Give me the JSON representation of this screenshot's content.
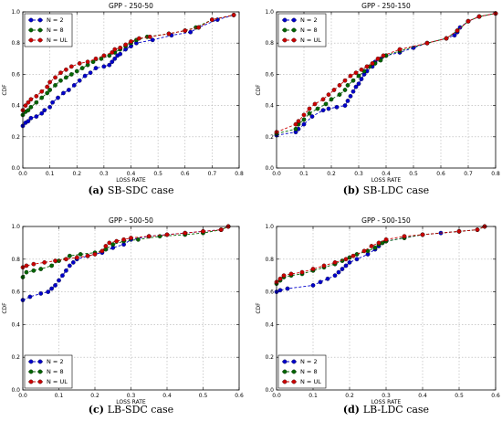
{
  "chart_data": [
    {
      "type": "line",
      "title": "GPP - 250-50",
      "xlabel": "LOSS RATE",
      "ylabel": "CDF",
      "xlim": [
        0,
        0.8
      ],
      "ylim": [
        0,
        1.0
      ],
      "xticks": [
        "0.0",
        "0.1",
        "0.2",
        "0.3",
        "0.4",
        "0.5",
        "0.6",
        "0.7",
        "0.8"
      ],
      "yticks": [
        "0.0",
        "0.2",
        "0.4",
        "0.6",
        "0.8",
        "1.0"
      ],
      "grid": true,
      "legend_position": "upper-left",
      "caption_letter": "(a)",
      "caption_text": "SB-SDC case",
      "series": [
        {
          "name": "N = 2",
          "color": "#0000cc",
          "x": [
            0,
            0.01,
            0.02,
            0.03,
            0.05,
            0.07,
            0.08,
            0.1,
            0.11,
            0.13,
            0.15,
            0.17,
            0.19,
            0.21,
            0.23,
            0.25,
            0.27,
            0.3,
            0.32,
            0.33,
            0.34,
            0.35,
            0.36,
            0.38,
            0.4,
            0.42,
            0.48,
            0.55,
            0.62,
            0.65,
            0.72,
            0.78
          ],
          "y": [
            0.27,
            0.29,
            0.3,
            0.32,
            0.33,
            0.35,
            0.37,
            0.39,
            0.42,
            0.45,
            0.48,
            0.5,
            0.53,
            0.56,
            0.59,
            0.61,
            0.64,
            0.65,
            0.66,
            0.68,
            0.7,
            0.72,
            0.73,
            0.76,
            0.78,
            0.8,
            0.82,
            0.85,
            0.87,
            0.9,
            0.95,
            0.98
          ]
        },
        {
          "name": "N = 8",
          "color": "#006600",
          "x": [
            0,
            0.01,
            0.02,
            0.03,
            0.05,
            0.07,
            0.09,
            0.1,
            0.12,
            0.14,
            0.16,
            0.18,
            0.2,
            0.22,
            0.24,
            0.26,
            0.29,
            0.32,
            0.34,
            0.36,
            0.38,
            0.4,
            0.42,
            0.46,
            0.54,
            0.6,
            0.64,
            0.7,
            0.78
          ],
          "y": [
            0.34,
            0.36,
            0.37,
            0.39,
            0.42,
            0.45,
            0.48,
            0.5,
            0.53,
            0.56,
            0.58,
            0.6,
            0.62,
            0.64,
            0.66,
            0.68,
            0.7,
            0.72,
            0.74,
            0.76,
            0.78,
            0.8,
            0.82,
            0.84,
            0.86,
            0.88,
            0.9,
            0.95,
            0.98
          ]
        },
        {
          "name": "N = UL",
          "color": "#cc0000",
          "x": [
            0,
            0.01,
            0.02,
            0.03,
            0.05,
            0.07,
            0.09,
            0.1,
            0.12,
            0.14,
            0.16,
            0.18,
            0.21,
            0.24,
            0.27,
            0.3,
            0.33,
            0.34,
            0.36,
            0.38,
            0.4,
            0.43,
            0.47,
            0.54,
            0.6,
            0.65,
            0.7,
            0.78
          ],
          "y": [
            0.37,
            0.4,
            0.42,
            0.44,
            0.46,
            0.49,
            0.52,
            0.55,
            0.58,
            0.61,
            0.63,
            0.65,
            0.67,
            0.68,
            0.7,
            0.72,
            0.74,
            0.76,
            0.77,
            0.79,
            0.81,
            0.83,
            0.84,
            0.86,
            0.88,
            0.9,
            0.95,
            0.98
          ]
        }
      ]
    },
    {
      "type": "line",
      "title": "GPP - 250-150",
      "xlabel": "LOSS RATE",
      "ylabel": "CDF",
      "xlim": [
        0,
        0.8
      ],
      "ylim": [
        0,
        1.0
      ],
      "xticks": [
        "0.0",
        "0.1",
        "0.2",
        "0.3",
        "0.4",
        "0.5",
        "0.6",
        "0.7",
        "0.8"
      ],
      "yticks": [
        "0.0",
        "0.2",
        "0.4",
        "0.6",
        "0.8",
        "1.0"
      ],
      "grid": true,
      "legend_position": "upper-left",
      "caption_letter": "(b)",
      "caption_text": "SB-LDC case",
      "series": [
        {
          "name": "N = 2",
          "color": "#0000cc",
          "x": [
            0,
            0.07,
            0.08,
            0.1,
            0.13,
            0.17,
            0.19,
            0.22,
            0.25,
            0.26,
            0.27,
            0.28,
            0.29,
            0.3,
            0.31,
            0.32,
            0.33,
            0.35,
            0.36,
            0.38,
            0.4,
            0.45,
            0.5,
            0.55,
            0.62,
            0.65,
            0.66,
            0.67,
            0.7,
            0.74,
            0.8
          ],
          "y": [
            0.21,
            0.23,
            0.25,
            0.28,
            0.33,
            0.37,
            0.38,
            0.39,
            0.4,
            0.43,
            0.46,
            0.49,
            0.52,
            0.54,
            0.57,
            0.6,
            0.62,
            0.65,
            0.68,
            0.7,
            0.72,
            0.74,
            0.77,
            0.8,
            0.83,
            0.85,
            0.87,
            0.9,
            0.94,
            0.97,
            0.99
          ]
        },
        {
          "name": "N = 8",
          "color": "#006600",
          "x": [
            0,
            0.07,
            0.08,
            0.1,
            0.12,
            0.15,
            0.18,
            0.2,
            0.23,
            0.25,
            0.26,
            0.28,
            0.3,
            0.32,
            0.34,
            0.36,
            0.38,
            0.4,
            0.45,
            0.55,
            0.62,
            0.66,
            0.7,
            0.74,
            0.8
          ],
          "y": [
            0.22,
            0.25,
            0.28,
            0.31,
            0.35,
            0.38,
            0.41,
            0.44,
            0.47,
            0.5,
            0.53,
            0.56,
            0.59,
            0.62,
            0.65,
            0.67,
            0.69,
            0.72,
            0.75,
            0.8,
            0.83,
            0.88,
            0.94,
            0.97,
            0.99
          ]
        },
        {
          "name": "N = UL",
          "color": "#cc0000",
          "x": [
            0,
            0.07,
            0.08,
            0.1,
            0.12,
            0.14,
            0.17,
            0.19,
            0.21,
            0.23,
            0.25,
            0.27,
            0.29,
            0.31,
            0.33,
            0.35,
            0.37,
            0.39,
            0.45,
            0.55,
            0.62,
            0.66,
            0.7,
            0.74,
            0.8
          ],
          "y": [
            0.23,
            0.28,
            0.3,
            0.34,
            0.38,
            0.41,
            0.44,
            0.47,
            0.5,
            0.53,
            0.56,
            0.59,
            0.61,
            0.63,
            0.65,
            0.67,
            0.7,
            0.72,
            0.76,
            0.8,
            0.83,
            0.88,
            0.94,
            0.97,
            0.99
          ]
        }
      ]
    },
    {
      "type": "line",
      "title": "GPP - 500-50",
      "xlabel": "LOSS RATE",
      "ylabel": "CDF",
      "xlim": [
        0,
        0.6
      ],
      "ylim": [
        0,
        1.0
      ],
      "xticks": [
        "0.0",
        "0.1",
        "0.2",
        "0.3",
        "0.4",
        "0.5",
        "0.6"
      ],
      "yticks": [
        "0.0",
        "0.2",
        "0.4",
        "0.6",
        "0.8",
        "1.0"
      ],
      "grid": true,
      "legend_position": "lower-left",
      "caption_letter": "(c)",
      "caption_text": "LB-SDC case",
      "series": [
        {
          "name": "N = 2",
          "color": "#0000cc",
          "x": [
            0,
            0.02,
            0.05,
            0.07,
            0.08,
            0.09,
            0.1,
            0.11,
            0.12,
            0.13,
            0.14,
            0.15,
            0.18,
            0.22,
            0.25,
            0.28,
            0.3,
            0.35,
            0.4,
            0.45,
            0.5,
            0.55,
            0.57
          ],
          "y": [
            0.55,
            0.57,
            0.59,
            0.6,
            0.62,
            0.64,
            0.67,
            0.7,
            0.73,
            0.76,
            0.78,
            0.8,
            0.82,
            0.84,
            0.87,
            0.89,
            0.92,
            0.94,
            0.95,
            0.96,
            0.97,
            0.98,
            1.0
          ]
        },
        {
          "name": "N = 8",
          "color": "#006600",
          "x": [
            0,
            0.01,
            0.03,
            0.05,
            0.08,
            0.1,
            0.13,
            0.16,
            0.2,
            0.23,
            0.25,
            0.28,
            0.32,
            0.38,
            0.45,
            0.5,
            0.55,
            0.57
          ],
          "y": [
            0.69,
            0.72,
            0.73,
            0.74,
            0.76,
            0.79,
            0.82,
            0.83,
            0.84,
            0.86,
            0.89,
            0.91,
            0.92,
            0.94,
            0.95,
            0.96,
            0.98,
            1.0
          ]
        },
        {
          "name": "N = UL",
          "color": "#cc0000",
          "x": [
            0,
            0.01,
            0.03,
            0.06,
            0.09,
            0.12,
            0.15,
            0.18,
            0.2,
            0.22,
            0.23,
            0.24,
            0.26,
            0.28,
            0.3,
            0.35,
            0.4,
            0.45,
            0.5,
            0.55,
            0.57
          ],
          "y": [
            0.75,
            0.76,
            0.77,
            0.78,
            0.79,
            0.8,
            0.81,
            0.82,
            0.83,
            0.85,
            0.88,
            0.9,
            0.91,
            0.92,
            0.93,
            0.94,
            0.95,
            0.96,
            0.97,
            0.98,
            1.0
          ]
        }
      ]
    },
    {
      "type": "line",
      "title": "GPP - 500-150",
      "xlabel": "LOSS RATE",
      "ylabel": "CDF",
      "xlim": [
        0,
        0.6
      ],
      "ylim": [
        0,
        1.0
      ],
      "xticks": [
        "0.0",
        "0.1",
        "0.2",
        "0.3",
        "0.4",
        "0.5",
        "0.6"
      ],
      "yticks": [
        "0.0",
        "0.2",
        "0.4",
        "0.6",
        "0.8",
        "1.0"
      ],
      "grid": true,
      "legend_position": "lower-left",
      "caption_letter": "(d)",
      "caption_text": "LB-LDC case",
      "series": [
        {
          "name": "N = 2",
          "color": "#0000cc",
          "x": [
            0,
            0.01,
            0.03,
            0.1,
            0.12,
            0.14,
            0.16,
            0.17,
            0.18,
            0.19,
            0.2,
            0.22,
            0.25,
            0.27,
            0.28,
            0.29,
            0.3,
            0.35,
            0.4,
            0.45,
            0.5,
            0.55,
            0.57
          ],
          "y": [
            0.6,
            0.61,
            0.62,
            0.64,
            0.66,
            0.68,
            0.7,
            0.72,
            0.74,
            0.76,
            0.78,
            0.8,
            0.83,
            0.86,
            0.88,
            0.9,
            0.91,
            0.93,
            0.95,
            0.96,
            0.97,
            0.98,
            1.0
          ]
        },
        {
          "name": "N = 8",
          "color": "#006600",
          "x": [
            0,
            0.01,
            0.02,
            0.04,
            0.07,
            0.1,
            0.13,
            0.16,
            0.18,
            0.2,
            0.22,
            0.25,
            0.27,
            0.28,
            0.29,
            0.3,
            0.35,
            0.4,
            0.5,
            0.55,
            0.57
          ],
          "y": [
            0.65,
            0.67,
            0.69,
            0.7,
            0.71,
            0.73,
            0.75,
            0.77,
            0.79,
            0.81,
            0.83,
            0.85,
            0.87,
            0.89,
            0.9,
            0.91,
            0.93,
            0.95,
            0.97,
            0.98,
            1.0
          ]
        },
        {
          "name": "N = UL",
          "color": "#cc0000",
          "x": [
            0,
            0.01,
            0.02,
            0.04,
            0.07,
            0.1,
            0.13,
            0.16,
            0.19,
            0.21,
            0.24,
            0.26,
            0.28,
            0.3,
            0.35,
            0.4,
            0.5,
            0.55,
            0.57
          ],
          "y": [
            0.66,
            0.68,
            0.7,
            0.71,
            0.72,
            0.74,
            0.76,
            0.78,
            0.8,
            0.82,
            0.85,
            0.88,
            0.9,
            0.92,
            0.94,
            0.95,
            0.97,
            0.98,
            1.0
          ]
        }
      ]
    }
  ]
}
